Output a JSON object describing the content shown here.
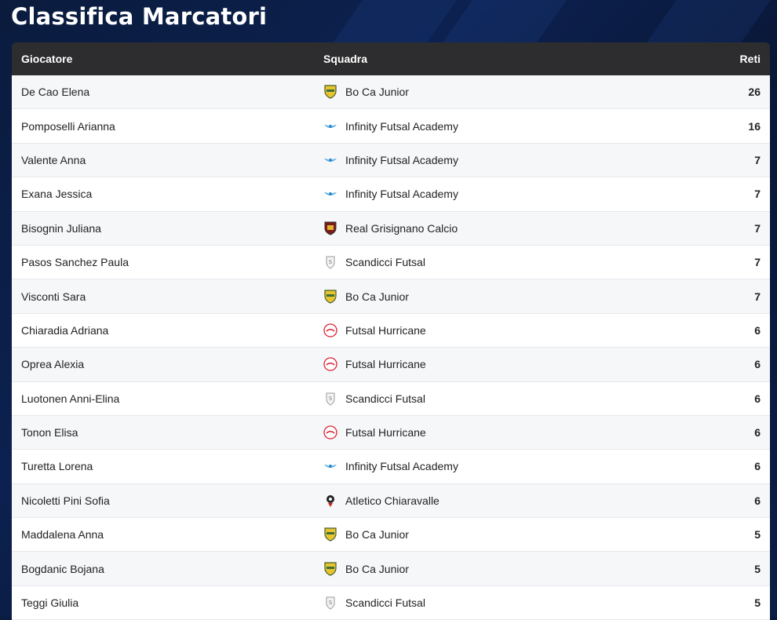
{
  "page": {
    "title": "Classifica Marcatori"
  },
  "table": {
    "headers": {
      "player": "Giocatore",
      "team": "Squadra",
      "goals": "Reti"
    },
    "rows": [
      {
        "player": "De Cao Elena",
        "team": "Bo Ca Junior",
        "logo": "boca-shield-icon",
        "goals": "26"
      },
      {
        "player": "Pomposelli Arianna",
        "team": "Infinity Futsal Academy",
        "logo": "infinity-wings-icon",
        "goals": "16"
      },
      {
        "player": "Valente Anna",
        "team": "Infinity Futsal Academy",
        "logo": "infinity-wings-icon",
        "goals": "7"
      },
      {
        "player": "Exana Jessica",
        "team": "Infinity Futsal Academy",
        "logo": "infinity-wings-icon",
        "goals": "7"
      },
      {
        "player": "Bisognin Juliana",
        "team": "Real Grisignano Calcio",
        "logo": "grisignano-shield-icon",
        "goals": "7"
      },
      {
        "player": "Pasos Sanchez Paula",
        "team": "Scandicci Futsal",
        "logo": "scandicci-crest-icon",
        "goals": "7"
      },
      {
        "player": "Visconti Sara",
        "team": "Bo Ca Junior",
        "logo": "boca-shield-icon",
        "goals": "7"
      },
      {
        "player": "Chiaradia Adriana",
        "team": "Futsal Hurricane",
        "logo": "hurricane-circle-icon",
        "goals": "6"
      },
      {
        "player": "Oprea Alexia",
        "team": "Futsal Hurricane",
        "logo": "hurricane-circle-icon",
        "goals": "6"
      },
      {
        "player": "Luotonen Anni-Elina",
        "team": "Scandicci Futsal",
        "logo": "scandicci-crest-icon",
        "goals": "6"
      },
      {
        "player": "Tonon Elisa",
        "team": "Futsal Hurricane",
        "logo": "hurricane-circle-icon",
        "goals": "6"
      },
      {
        "player": "Turetta Lorena",
        "team": "Infinity Futsal Academy",
        "logo": "infinity-wings-icon",
        "goals": "6"
      },
      {
        "player": "Nicoletti Pini Sofia",
        "team": "Atletico Chiaravalle",
        "logo": "chiaravalle-crest-icon",
        "goals": "6"
      },
      {
        "player": "Maddalena Anna",
        "team": "Bo Ca Junior",
        "logo": "boca-shield-icon",
        "goals": "5"
      },
      {
        "player": "Bogdanic Bojana",
        "team": "Bo Ca Junior",
        "logo": "boca-shield-icon",
        "goals": "5"
      },
      {
        "player": "Teggi Giulia",
        "team": "Scandicci Futsal",
        "logo": "scandicci-crest-icon",
        "goals": "5"
      }
    ]
  },
  "colors": {
    "header_bg": "#2d2d2f",
    "page_bg": "#0b1e47",
    "row_alt": "#f6f7f9"
  }
}
